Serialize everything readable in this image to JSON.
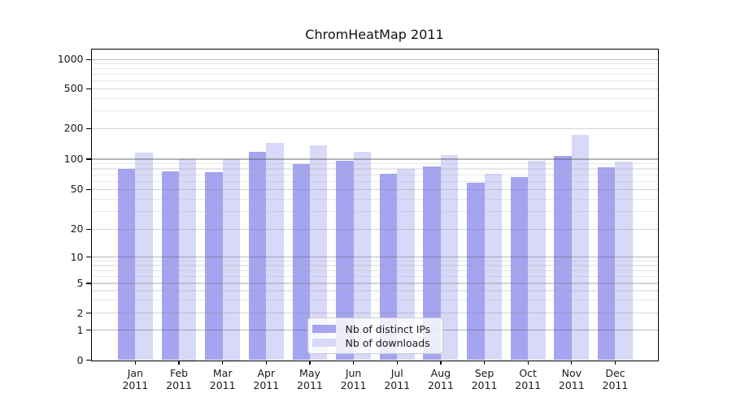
{
  "chart_data": {
    "type": "bar",
    "title": "ChromHeatMap 2011",
    "categories": [
      "Jan",
      "Feb",
      "Mar",
      "Apr",
      "May",
      "Jun",
      "Jul",
      "Aug",
      "Sep",
      "Oct",
      "Nov",
      "Dec"
    ],
    "x_year": "2011",
    "series": [
      {
        "name": "Nb of distinct IPs",
        "color": "#a4a4f1",
        "values": [
          80,
          76,
          74,
          119,
          90,
          96,
          71,
          85,
          58,
          66,
          108,
          83
        ]
      },
      {
        "name": "Nb of downloads",
        "color": "#d8d8f8",
        "values": [
          115,
          100,
          100,
          145,
          137,
          119,
          80,
          110,
          72,
          97,
          175,
          95
        ]
      }
    ],
    "xlabel": "",
    "ylabel": "",
    "yticks": [
      0,
      1,
      2,
      5,
      10,
      20,
      50,
      100,
      200,
      500,
      1000
    ],
    "yscale": "log-with-zero",
    "ylim": [
      0,
      1000
    ],
    "grid": true,
    "legend_position": "lower center"
  }
}
